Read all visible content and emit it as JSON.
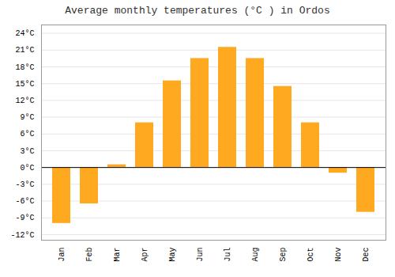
{
  "chart_data": {
    "type": "bar",
    "title": "Average monthly temperatures (°C ) in Ordos",
    "categories": [
      "Jan",
      "Feb",
      "Mar",
      "Apr",
      "May",
      "Jun",
      "Jul",
      "Aug",
      "Sep",
      "Oct",
      "Nov",
      "Dec"
    ],
    "values": [
      -10,
      -6.5,
      0.5,
      8,
      15.5,
      19.5,
      21.5,
      19.5,
      14.5,
      8,
      -1,
      -8
    ],
    "color": "#FFA920",
    "ylim": [
      -13,
      25.5
    ],
    "yticks": [
      {
        "value": -12,
        "label": "-12°C"
      },
      {
        "value": -9,
        "label": "-9°C"
      },
      {
        "value": -6,
        "label": "-6°C"
      },
      {
        "value": -3,
        "label": "-3°C"
      },
      {
        "value": 0,
        "label": "0°C"
      },
      {
        "value": 3,
        "label": "3°C"
      },
      {
        "value": 6,
        "label": "6°C"
      },
      {
        "value": 9,
        "label": "9°C"
      },
      {
        "value": 12,
        "label": "12°C"
      },
      {
        "value": 15,
        "label": "15°C"
      },
      {
        "value": 18,
        "label": "18°C"
      },
      {
        "value": 21,
        "label": "21°C"
      },
      {
        "value": 24,
        "label": "24°C"
      }
    ],
    "grid": true
  }
}
